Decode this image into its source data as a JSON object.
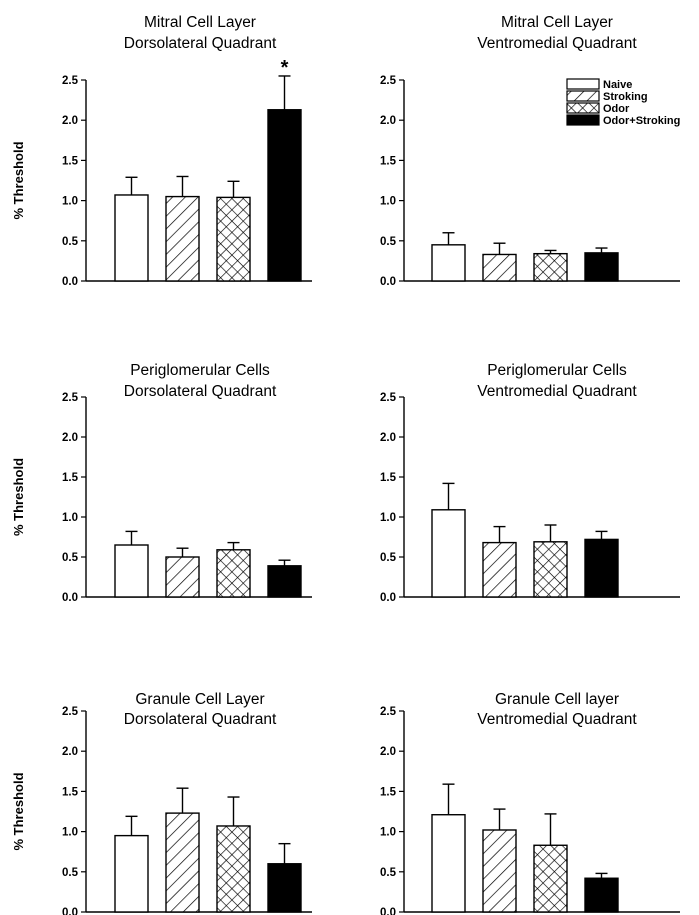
{
  "groups": [
    "Naive",
    "Stroking",
    "Odor",
    "Odor+Stroking"
  ],
  "legend": {
    "items": [
      {
        "label": "Naive",
        "pattern": "white"
      },
      {
        "label": "Stroking",
        "pattern": "diagonal"
      },
      {
        "label": "Odor",
        "pattern": "crosshatch"
      },
      {
        "label": "Odor+Stroking",
        "pattern": "black"
      }
    ]
  },
  "chart_data": [
    {
      "type": "bar",
      "title": [
        "Mitral Cell Layer",
        "Dorsolateral Quadrant"
      ],
      "ylabel": "% Threshold",
      "ylim": [
        0,
        2.5
      ],
      "yticks": [
        "0.0",
        "0.5",
        "1.0",
        "1.5",
        "2.0",
        "2.5"
      ],
      "categories": [
        "Naive",
        "Stroking",
        "Odor",
        "Odor+Stroking"
      ],
      "values": [
        1.07,
        1.05,
        1.04,
        2.13
      ],
      "errors": [
        0.22,
        0.25,
        0.2,
        0.42
      ],
      "annotations": [
        {
          "category": "Odor+Stroking",
          "text": "*"
        }
      ]
    },
    {
      "type": "bar",
      "title": [
        "Mitral Cell Layer",
        "Ventromedial Quadrant"
      ],
      "ylabel": "",
      "ylim": [
        0,
        2.5
      ],
      "yticks": [
        "0.0",
        "0.5",
        "1.0",
        "1.5",
        "2.0",
        "2.5"
      ],
      "categories": [
        "Naive",
        "Stroking",
        "Odor",
        "Odor+Stroking"
      ],
      "values": [
        0.45,
        0.33,
        0.34,
        0.35
      ],
      "errors": [
        0.15,
        0.14,
        0.04,
        0.06
      ],
      "legend": true
    },
    {
      "type": "bar",
      "title": [
        "Periglomerular Cells",
        "Dorsolateral Quadrant"
      ],
      "ylabel": "% Threshold",
      "ylim": [
        0,
        2.5
      ],
      "yticks": [
        "0.0",
        "0.5",
        "1.0",
        "1.5",
        "2.0",
        "2.5"
      ],
      "categories": [
        "Naive",
        "Stroking",
        "Odor",
        "Odor+Stroking"
      ],
      "values": [
        0.65,
        0.5,
        0.59,
        0.39
      ],
      "errors": [
        0.17,
        0.11,
        0.09,
        0.07
      ]
    },
    {
      "type": "bar",
      "title": [
        "Periglomerular Cells",
        "Ventromedial Quadrant"
      ],
      "ylabel": "",
      "ylim": [
        0,
        2.5
      ],
      "yticks": [
        "0.0",
        "0.5",
        "1.0",
        "1.5",
        "2.0",
        "2.5"
      ],
      "categories": [
        "Naive",
        "Stroking",
        "Odor",
        "Odor+Stroking"
      ],
      "values": [
        1.09,
        0.68,
        0.69,
        0.72
      ],
      "errors": [
        0.33,
        0.2,
        0.21,
        0.1
      ]
    },
    {
      "type": "bar",
      "title": [
        "Granule Cell Layer",
        "Dorsolateral Quadrant"
      ],
      "ylabel": "% Threshold",
      "ylim": [
        0,
        2.5
      ],
      "yticks": [
        "0.0",
        "0.5",
        "1.0",
        "1.5",
        "2.0",
        "2.5"
      ],
      "categories": [
        "Naive",
        "Stroking",
        "Odor",
        "Odor+Stroking"
      ],
      "values": [
        0.95,
        1.23,
        1.07,
        0.6
      ],
      "errors": [
        0.24,
        0.31,
        0.36,
        0.25
      ]
    },
    {
      "type": "bar",
      "title": [
        "Granule Cell layer",
        "Ventromedial Quadrant"
      ],
      "ylabel": "",
      "ylim": [
        0,
        2.5
      ],
      "yticks": [
        "0.0",
        "0.5",
        "1.0",
        "1.5",
        "2.0",
        "2.5"
      ],
      "categories": [
        "Naive",
        "Stroking",
        "Odor",
        "Odor+Stroking"
      ],
      "values": [
        1.21,
        1.02,
        0.83,
        0.42
      ],
      "errors": [
        0.38,
        0.26,
        0.39,
        0.06
      ]
    }
  ]
}
